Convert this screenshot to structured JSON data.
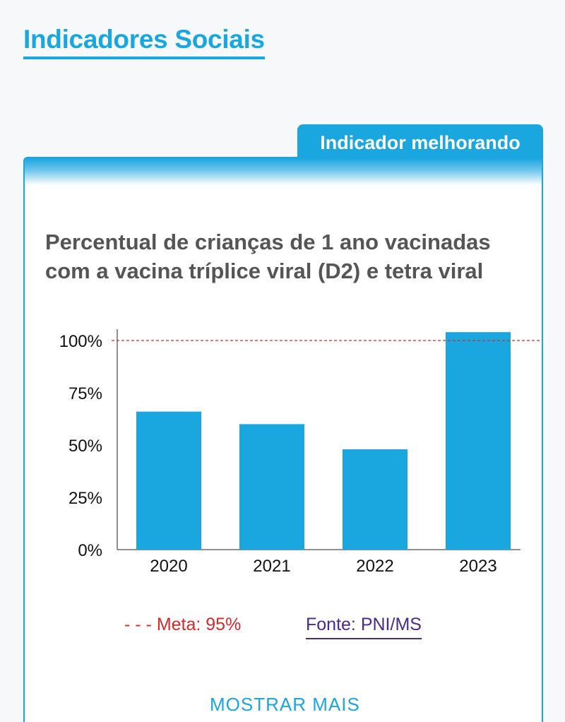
{
  "header": {
    "title": "Indicadores Sociais"
  },
  "status_tab": {
    "label": "Indicador melhorando"
  },
  "chart_data": {
    "type": "bar",
    "title": "Percentual de crianças de 1 ano vacinadas com a vacina tríplice viral (D2) e tetra viral",
    "categories": [
      "2020",
      "2021",
      "2022",
      "2023"
    ],
    "values": [
      66,
      60,
      48,
      104
    ],
    "ylim": [
      0,
      100
    ],
    "yticks": [
      "0%",
      "25%",
      "50%",
      "75%",
      "100%"
    ],
    "target_line": {
      "value": 95
    },
    "bar_color": "#1aa6df",
    "target_color": "#d42a2a",
    "grid": false
  },
  "legend": {
    "target": "- - - Meta: 95%"
  },
  "source": {
    "label": "Fonte: PNI/MS"
  },
  "footer": {
    "more_label": "MOSTRAR MAIS"
  }
}
